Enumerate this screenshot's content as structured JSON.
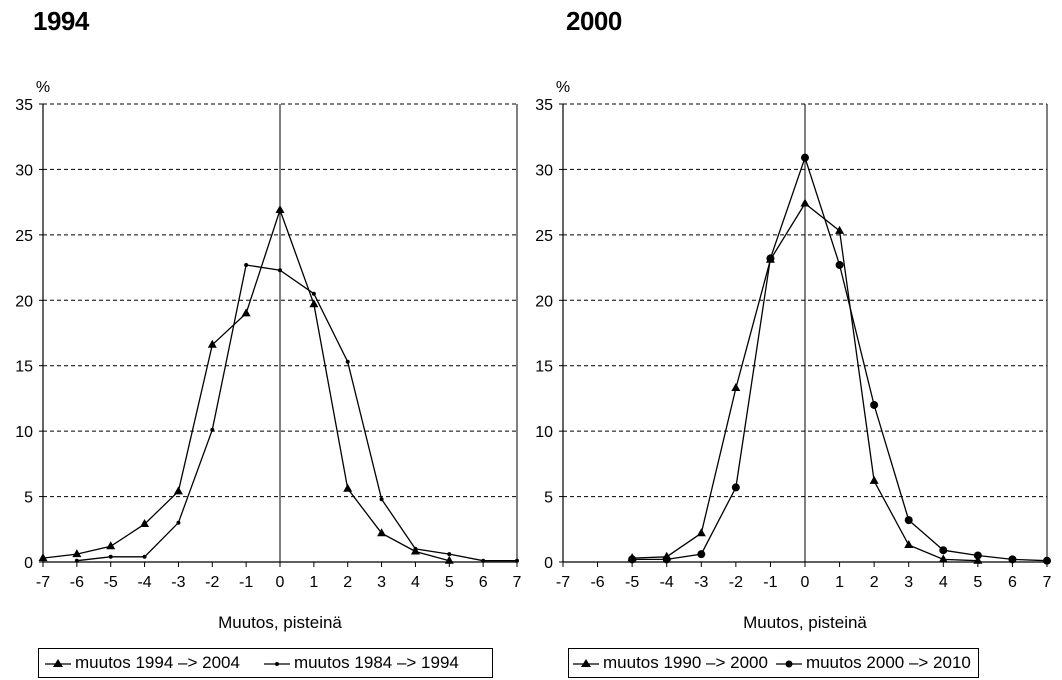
{
  "chart_data": [
    {
      "type": "line",
      "title": "1994",
      "ylabel": "%",
      "xlabel": "Muutos, pisteinä",
      "ylim": [
        0,
        35
      ],
      "xlim": [
        -7,
        7
      ],
      "yticks": [
        "0",
        "5",
        "10",
        "15",
        "20",
        "25",
        "30",
        "35"
      ],
      "xticks": [
        "-7",
        "-6",
        "-5",
        "-4",
        "-3",
        "-2",
        "-1",
        "0",
        "1",
        "2",
        "3",
        "4",
        "5",
        "6",
        "7"
      ],
      "grid": "horizontal-dashed",
      "legend_position": "bottom",
      "series": [
        {
          "name": "muutos 1994 –> 2004",
          "marker": "triangle",
          "x": [
            -7,
            -6,
            -5,
            -4,
            -3,
            -2,
            -1,
            0,
            1,
            2,
            3,
            4,
            5
          ],
          "values": [
            0.3,
            0.6,
            1.2,
            2.9,
            5.4,
            16.6,
            19.0,
            26.9,
            19.7,
            5.6,
            2.2,
            0.8,
            0.1
          ]
        },
        {
          "name": "muutos 1984 –> 1994",
          "marker": "dot",
          "x": [
            -6,
            -5,
            -4,
            -3,
            -2,
            -1,
            0,
            1,
            2,
            3,
            4,
            5,
            6,
            7
          ],
          "values": [
            0.1,
            0.4,
            0.4,
            3.0,
            10.1,
            22.7,
            22.3,
            20.5,
            15.3,
            4.8,
            1.0,
            0.6,
            0.1,
            0.1
          ]
        }
      ]
    },
    {
      "type": "line",
      "title": "2000",
      "ylabel": "%",
      "xlabel": "Muutos, pisteinä",
      "ylim": [
        0,
        35
      ],
      "xlim": [
        -7,
        7
      ],
      "yticks": [
        "0",
        "5",
        "10",
        "15",
        "20",
        "25",
        "30",
        "35"
      ],
      "xticks": [
        "-7",
        "-6",
        "-5",
        "-4",
        "-3",
        "-2",
        "-1",
        "0",
        "1",
        "2",
        "3",
        "4",
        "5",
        "6",
        "7"
      ],
      "grid": "horizontal-dashed",
      "legend_position": "bottom",
      "series": [
        {
          "name": "muutos 1990 –> 2000",
          "marker": "triangle",
          "x": [
            -5,
            -4,
            -3,
            -2,
            -1,
            0,
            1,
            2,
            3,
            4,
            5
          ],
          "values": [
            0.3,
            0.4,
            2.2,
            13.3,
            23.1,
            27.4,
            25.3,
            6.2,
            1.3,
            0.2,
            0.1
          ]
        },
        {
          "name": "muutos 2000 –> 2010",
          "marker": "circle",
          "x": [
            -5,
            -4,
            -3,
            -2,
            -1,
            0,
            1,
            2,
            3,
            4,
            5,
            6,
            7
          ],
          "values": [
            0.2,
            0.2,
            0.6,
            5.7,
            23.2,
            30.9,
            22.7,
            12.0,
            3.2,
            0.9,
            0.5,
            0.2,
            0.1
          ]
        }
      ]
    }
  ]
}
